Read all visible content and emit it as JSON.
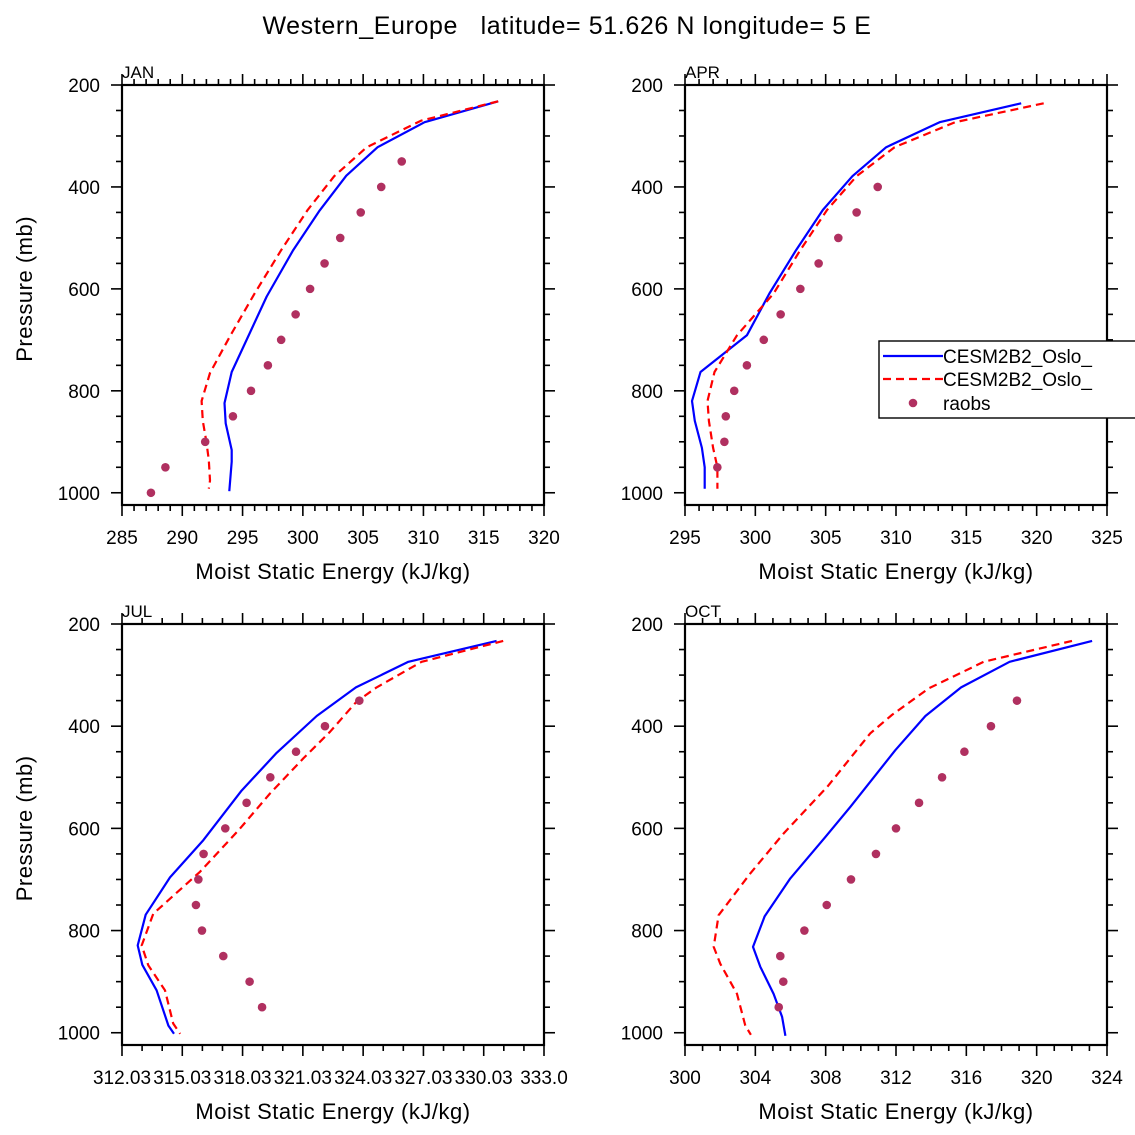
{
  "title": "Western_Europe   latitude= 51.626 N longitude= 5 E",
  "colors": {
    "model1": "#0000ff",
    "model2": "#ff0000",
    "raobs": "#b03060"
  },
  "legend": {
    "placement": "right-middle of APR panel",
    "entries": [
      {
        "label": "CESM2B2_Oslo_",
        "style": "solid",
        "color": "#0000ff"
      },
      {
        "label": "CESM2B2_Oslo_",
        "style": "dashed",
        "color": "#ff0000"
      },
      {
        "label": "raobs",
        "style": "marker",
        "color": "#b03060"
      }
    ]
  },
  "chart_data": [
    {
      "type": "line",
      "panel": "JAN",
      "title": "JAN",
      "xlabel": "Moist Static Energy (kJ/kg)",
      "ylabel": "Pressure (mb)",
      "xlim": [
        285,
        320
      ],
      "ylim": [
        200,
        1024
      ],
      "y_inverted": true,
      "xticks": [
        285,
        290,
        295,
        300,
        305,
        310,
        315,
        320
      ],
      "xtick_labels": [
        "285",
        "290",
        "295",
        "300",
        "305",
        "310",
        "315",
        "320"
      ],
      "xminor": 1,
      "yticks": [
        200,
        400,
        600,
        800,
        1000
      ],
      "ytick_labels": [
        "200",
        "400",
        "600",
        "800",
        "1000"
      ],
      "yminor": 50,
      "series": [
        {
          "name": "CESM2B2_Oslo_",
          "style": "solid",
          "points": [
            [
              316.2,
              232
            ],
            [
              310.1,
              273
            ],
            [
              306.2,
              322
            ],
            [
              303.6,
              378
            ],
            [
              301.4,
              446
            ],
            [
              299.2,
              524
            ],
            [
              297.0,
              615
            ],
            [
              294.1,
              763
            ],
            [
              293.5,
              824
            ],
            [
              293.6,
              864
            ],
            [
              294.1,
              916
            ],
            [
              294.1,
              939
            ],
            [
              293.9,
              997
            ]
          ]
        },
        {
          "name": "CESM2B2_Oslo_",
          "style": "dashed",
          "points": [
            [
              316.2,
              232
            ],
            [
              309.8,
              270
            ],
            [
              305.3,
              322
            ],
            [
              302.6,
              379
            ],
            [
              300.4,
              445
            ],
            [
              298.2,
              524
            ],
            [
              296.0,
              609
            ],
            [
              294.0,
              691
            ],
            [
              292.3,
              765
            ],
            [
              291.6,
              820
            ],
            [
              291.7,
              859
            ],
            [
              292.0,
              900
            ],
            [
              292.2,
              936
            ],
            [
              292.3,
              976
            ],
            [
              292.2,
              992
            ]
          ]
        },
        {
          "name": "raobs",
          "style": "marker",
          "points": [
            [
              287.4,
              1000
            ],
            [
              288.6,
              950
            ],
            [
              291.9,
              900
            ],
            [
              294.2,
              850
            ],
            [
              295.7,
              800
            ],
            [
              297.1,
              750
            ],
            [
              298.2,
              700
            ],
            [
              299.4,
              650
            ],
            [
              300.6,
              600
            ],
            [
              301.8,
              550
            ],
            [
              303.1,
              500
            ],
            [
              304.8,
              450
            ],
            [
              306.5,
              400
            ],
            [
              308.2,
              350
            ]
          ]
        }
      ]
    },
    {
      "type": "line",
      "panel": "APR",
      "title": "APR",
      "xlabel": "Moist Static Energy (kJ/kg)",
      "ylabel": "",
      "xlim": [
        295,
        325
      ],
      "ylim": [
        200,
        1024
      ],
      "y_inverted": true,
      "xticks": [
        295,
        300,
        305,
        310,
        315,
        320,
        325
      ],
      "xtick_labels": [
        "295",
        "300",
        "305",
        "310",
        "315",
        "320",
        "325"
      ],
      "xminor": 1,
      "yticks": [
        200,
        400,
        600,
        800,
        1000
      ],
      "ytick_labels": [
        "200",
        "400",
        "600",
        "800",
        "1000"
      ],
      "yminor": 50,
      "series": [
        {
          "name": "CESM2B2_Oslo_",
          "style": "solid",
          "points": [
            [
              318.9,
              236
            ],
            [
              313.1,
              273
            ],
            [
              309.3,
              322
            ],
            [
              306.9,
              379
            ],
            [
              304.8,
              445
            ],
            [
              302.9,
              524
            ],
            [
              301.0,
              609
            ],
            [
              299.4,
              691
            ],
            [
              296.1,
              763
            ],
            [
              295.5,
              820
            ],
            [
              295.7,
              859
            ],
            [
              296.2,
              912
            ],
            [
              296.4,
              950
            ],
            [
              296.4,
              992
            ]
          ]
        },
        {
          "name": "CESM2B2_Oslo_",
          "style": "dashed",
          "points": [
            [
              320.5,
              236
            ],
            [
              314.2,
              273
            ],
            [
              309.9,
              322
            ],
            [
              307.2,
              379
            ],
            [
              305.1,
              445
            ],
            [
              303.2,
              524
            ],
            [
              301.3,
              609
            ],
            [
              298.7,
              691
            ],
            [
              297.1,
              763
            ],
            [
              296.6,
              820
            ],
            [
              296.7,
              859
            ],
            [
              297.0,
              912
            ],
            [
              297.3,
              950
            ],
            [
              297.3,
              992
            ]
          ]
        },
        {
          "name": "raobs",
          "style": "marker",
          "points": [
            [
              297.3,
              950
            ],
            [
              297.8,
              900
            ],
            [
              297.9,
              850
            ],
            [
              298.5,
              800
            ],
            [
              299.4,
              750
            ],
            [
              300.6,
              700
            ],
            [
              301.8,
              650
            ],
            [
              303.2,
              600
            ],
            [
              304.5,
              550
            ],
            [
              305.9,
              500
            ],
            [
              307.2,
              450
            ],
            [
              308.7,
              400
            ]
          ]
        }
      ]
    },
    {
      "type": "line",
      "panel": "JUL",
      "title": "JUL",
      "xlabel": "Moist Static Energy (kJ/kg)",
      "ylabel": "Pressure (mb)",
      "xlim": [
        312.03,
        333.03
      ],
      "ylim": [
        200,
        1024
      ],
      "y_inverted": true,
      "xticks": [
        312.03,
        315.03,
        318.03,
        321.03,
        324.03,
        327.03,
        330.03,
        333.03
      ],
      "xtick_labels": [
        "312.03",
        "315.03",
        "318.03",
        "321.03",
        "324.03",
        "327.03",
        "330.03",
        "333.0"
      ],
      "xminor": 1,
      "yticks": [
        200,
        400,
        600,
        800,
        1000
      ],
      "ytick_labels": [
        "200",
        "400",
        "600",
        "800",
        "1000"
      ],
      "yminor": 50,
      "series": [
        {
          "name": "CESM2B2_Oslo_",
          "style": "solid",
          "points": [
            [
              330.67,
              233
            ],
            [
              326.28,
              274
            ],
            [
              323.67,
              324
            ],
            [
              321.72,
              380
            ],
            [
              319.73,
              452
            ],
            [
              317.98,
              526
            ],
            [
              316.08,
              623
            ],
            [
              314.42,
              696
            ],
            [
              313.21,
              769
            ],
            [
              312.81,
              829
            ],
            [
              313.04,
              867
            ],
            [
              313.75,
              917
            ],
            [
              314.34,
              986
            ],
            [
              314.62,
              1002
            ]
          ]
        },
        {
          "name": "CESM2B2_Oslo_",
          "style": "dashed",
          "points": [
            [
              331.0,
              233
            ],
            [
              326.94,
              274
            ],
            [
              324.7,
              324
            ],
            [
              323.7,
              352
            ],
            [
              322.38,
              411
            ],
            [
              321.05,
              463
            ],
            [
              319.39,
              532
            ],
            [
              317.82,
              604
            ],
            [
              315.91,
              685
            ],
            [
              313.59,
              767
            ],
            [
              313.01,
              829
            ],
            [
              313.34,
              868
            ],
            [
              314.17,
              917
            ],
            [
              314.58,
              982
            ],
            [
              314.92,
              1002
            ]
          ]
        },
        {
          "name": "raobs",
          "style": "marker",
          "points": [
            [
              323.84,
              350
            ],
            [
              322.13,
              400
            ],
            [
              320.69,
              450
            ],
            [
              319.41,
              500
            ],
            [
              318.23,
              550
            ],
            [
              317.17,
              600
            ],
            [
              316.09,
              650
            ],
            [
              315.83,
              700
            ],
            [
              315.71,
              750
            ],
            [
              316.01,
              800
            ],
            [
              317.07,
              850
            ],
            [
              318.38,
              900
            ],
            [
              319.0,
              950
            ]
          ]
        }
      ]
    },
    {
      "type": "line",
      "panel": "OCT",
      "title": "OCT",
      "xlabel": "Moist Static Energy (kJ/kg)",
      "ylabel": "",
      "xlim": [
        300,
        324
      ],
      "ylim": [
        200,
        1024
      ],
      "y_inverted": true,
      "xticks": [
        300,
        304,
        308,
        312,
        316,
        320,
        324
      ],
      "xtick_labels": [
        "300",
        "304",
        "308",
        "312",
        "316",
        "320",
        "324"
      ],
      "xminor": 1,
      "yticks": [
        200,
        400,
        600,
        800,
        1000
      ],
      "ytick_labels": [
        "200",
        "400",
        "600",
        "800",
        "1000"
      ],
      "yminor": 50,
      "series": [
        {
          "name": "CESM2B2_Oslo_",
          "style": "solid",
          "points": [
            [
              323.15,
              233
            ],
            [
              318.46,
              274
            ],
            [
              315.7,
              324
            ],
            [
              313.67,
              380
            ],
            [
              311.96,
              447
            ],
            [
              309.4,
              558
            ],
            [
              307.98,
              617
            ],
            [
              305.99,
              698
            ],
            [
              304.53,
              772
            ],
            [
              303.87,
              832
            ],
            [
              304.28,
              871
            ],
            [
              305.04,
              924
            ],
            [
              305.52,
              969
            ],
            [
              305.71,
              1006
            ]
          ]
        },
        {
          "name": "CESM2B2_Oslo_",
          "style": "dashed",
          "points": [
            [
              322.01,
              233
            ],
            [
              316.99,
              274
            ],
            [
              313.86,
              326
            ],
            [
              311.77,
              378
            ],
            [
              310.54,
              414
            ],
            [
              308.08,
              519
            ],
            [
              305.61,
              610
            ],
            [
              303.72,
              688
            ],
            [
              301.91,
              770
            ],
            [
              301.63,
              832
            ],
            [
              302.01,
              865
            ],
            [
              302.96,
              924
            ],
            [
              303.43,
              986
            ],
            [
              303.75,
              1004
            ]
          ]
        },
        {
          "name": "raobs",
          "style": "marker",
          "points": [
            [
              318.88,
              350
            ],
            [
              317.4,
              400
            ],
            [
              315.89,
              450
            ],
            [
              314.62,
              500
            ],
            [
              313.31,
              550
            ],
            [
              312.0,
              600
            ],
            [
              310.86,
              650
            ],
            [
              309.44,
              700
            ],
            [
              308.06,
              750
            ],
            [
              306.79,
              800
            ],
            [
              305.42,
              850
            ],
            [
              305.59,
              900
            ],
            [
              305.33,
              950
            ]
          ]
        }
      ]
    }
  ]
}
